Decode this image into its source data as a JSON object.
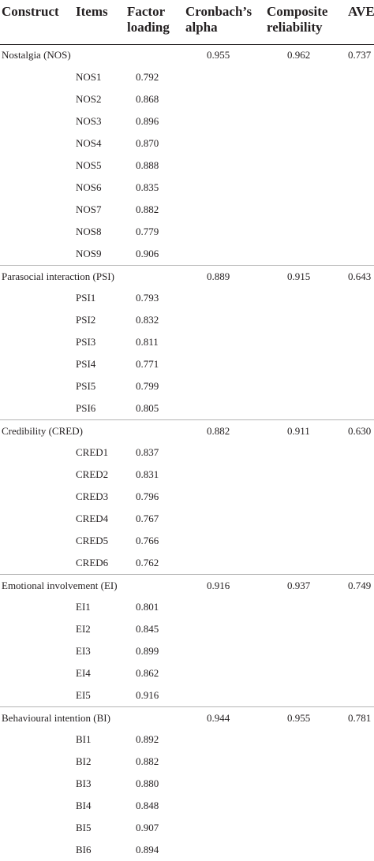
{
  "table": {
    "headers": {
      "construct": "Construct",
      "items": "Items",
      "loading": [
        "Factor",
        "loading"
      ],
      "alpha": [
        "Cronbach’s",
        "alpha"
      ],
      "cr": [
        "Composite",
        "reliability"
      ],
      "ave": "AVE"
    },
    "groups": [
      {
        "construct": "Nostalgia (NOS)",
        "alpha": "0.955",
        "cr": "0.962",
        "ave": "0.737",
        "items": [
          {
            "item": "NOS1",
            "loading": "0.792"
          },
          {
            "item": "NOS2",
            "loading": "0.868"
          },
          {
            "item": "NOS3",
            "loading": "0.896"
          },
          {
            "item": "NOS4",
            "loading": "0.870"
          },
          {
            "item": "NOS5",
            "loading": "0.888"
          },
          {
            "item": "NOS6",
            "loading": "0.835"
          },
          {
            "item": "NOS7",
            "loading": "0.882"
          },
          {
            "item": "NOS8",
            "loading": "0.779"
          },
          {
            "item": "NOS9",
            "loading": "0.906"
          }
        ]
      },
      {
        "construct": "Parasocial interaction (PSI)",
        "alpha": "0.889",
        "cr": "0.915",
        "ave": "0.643",
        "items": [
          {
            "item": "PSI1",
            "loading": "0.793"
          },
          {
            "item": "PSI2",
            "loading": "0.832"
          },
          {
            "item": "PSI3",
            "loading": "0.811"
          },
          {
            "item": "PSI4",
            "loading": "0.771"
          },
          {
            "item": "PSI5",
            "loading": "0.799"
          },
          {
            "item": "PSI6",
            "loading": "0.805"
          }
        ]
      },
      {
        "construct": "Credibility (CRED)",
        "alpha": "0.882",
        "cr": "0.911",
        "ave": "0.630",
        "items": [
          {
            "item": "CRED1",
            "loading": "0.837"
          },
          {
            "item": "CRED2",
            "loading": "0.831"
          },
          {
            "item": "CRED3",
            "loading": "0.796"
          },
          {
            "item": "CRED4",
            "loading": "0.767"
          },
          {
            "item": "CRED5",
            "loading": "0.766"
          },
          {
            "item": "CRED6",
            "loading": "0.762"
          }
        ]
      },
      {
        "construct": "Emotional involvement (EI)",
        "alpha": "0.916",
        "cr": "0.937",
        "ave": "0.749",
        "items": [
          {
            "item": "EI1",
            "loading": "0.801"
          },
          {
            "item": "EI2",
            "loading": "0.845"
          },
          {
            "item": "EI3",
            "loading": "0.899"
          },
          {
            "item": "EI4",
            "loading": "0.862"
          },
          {
            "item": "EI5",
            "loading": "0.916"
          }
        ]
      },
      {
        "construct": "Behavioural intention (BI)",
        "alpha": "0.944",
        "cr": "0.955",
        "ave": "0.781",
        "items": [
          {
            "item": "BI1",
            "loading": "0.892"
          },
          {
            "item": "BI2",
            "loading": "0.882"
          },
          {
            "item": "BI3",
            "loading": "0.880"
          },
          {
            "item": "BI4",
            "loading": "0.848"
          },
          {
            "item": "BI5",
            "loading": "0.907"
          },
          {
            "item": "BI6",
            "loading": "0.894"
          }
        ]
      }
    ]
  }
}
